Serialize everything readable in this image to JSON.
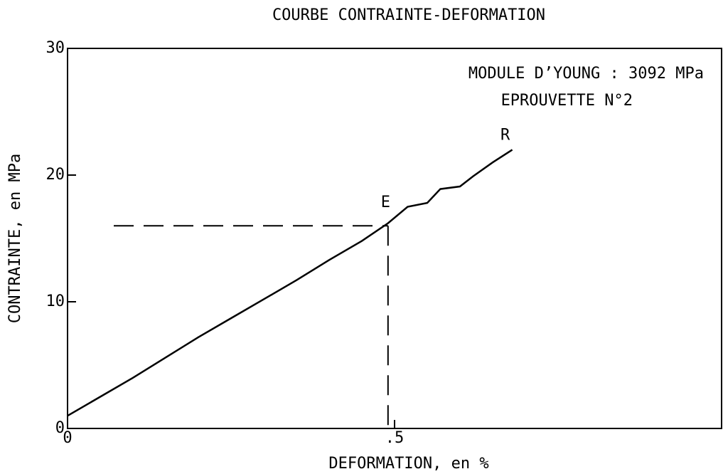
{
  "chart_data": {
    "type": "line",
    "title": "COURBE CONTRAINTE-DEFORMATION",
    "x_label": "DEFORMATION, en %",
    "y_label": "CONTRAINTE, en MPa",
    "annotations": [
      "MODULE D’YOUNG : 3092 MPa",
      "EPROUVETTE N°2"
    ],
    "x": [
      0,
      0.05,
      0.1,
      0.15,
      0.2,
      0.25,
      0.3,
      0.35,
      0.4,
      0.45,
      0.49,
      0.52,
      0.55,
      0.57,
      0.6,
      0.62,
      0.65,
      0.68
    ],
    "series": [
      {
        "color": "#000000",
        "values": [
          1,
          2.5,
          4,
          5.6,
          7.2,
          8.7,
          10.2,
          11.7,
          13.3,
          14.8,
          16.2,
          17.5,
          17.8,
          18.9,
          19.1,
          19.9,
          21,
          22
        ]
      }
    ],
    "reference_point": {
      "label": "E",
      "x": 0.49,
      "y": 16
    },
    "end_label": "R",
    "xlim": [
      0,
      1
    ],
    "ylim": [
      0,
      30
    ],
    "xticks": [
      0,
      {
        "value": 0.5,
        "label": ".5"
      }
    ],
    "yticks": [
      0,
      10,
      20,
      30
    ],
    "grid": false
  }
}
